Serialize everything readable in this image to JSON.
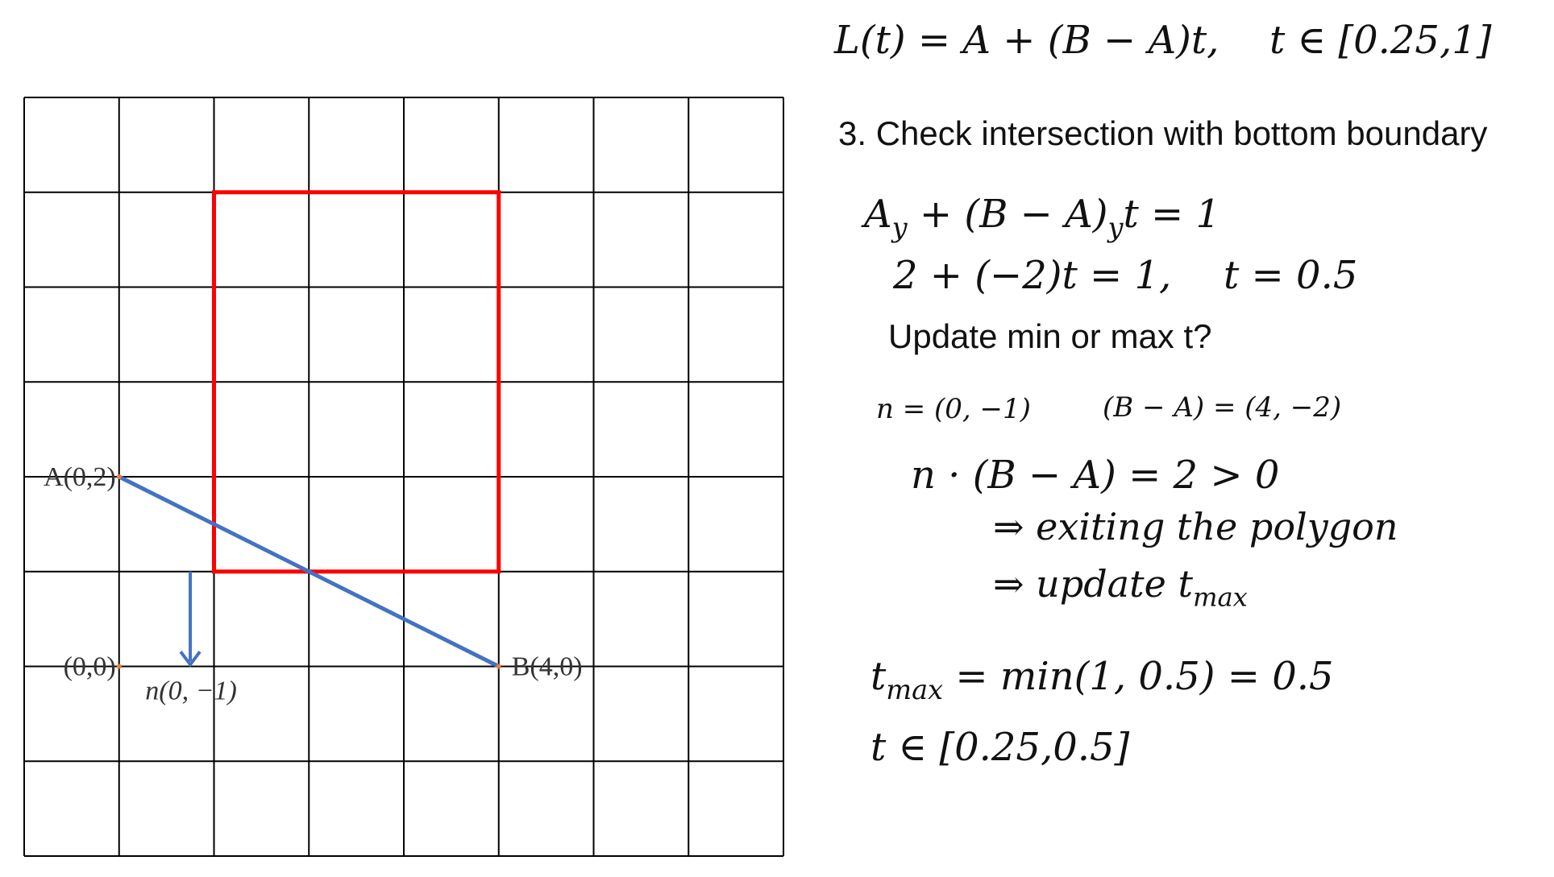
{
  "diagram": {
    "grid_cells": 8,
    "clip_rect": {
      "x_min": 1,
      "x_max": 4,
      "y_min": 1,
      "y_max": 5
    },
    "segment": {
      "A": [
        0,
        2
      ],
      "B": [
        4,
        0
      ]
    },
    "normal": {
      "origin": [
        0.75,
        1
      ],
      "direction": [
        0,
        -1
      ]
    },
    "colors": {
      "grid": "#000000",
      "clip": "#ff0000",
      "segment": "#4472c4",
      "point": "#ed7d31"
    },
    "labels": {
      "A": "A(0,2)",
      "B": "B(4,0)",
      "origin": "(0,0)",
      "normal": "n(0, −1)"
    }
  },
  "text": {
    "line_eq_lhs": "L(t) = A + (B − A)t,",
    "line_eq_range": "t ∈ [0.25,1]",
    "step_title": "3. Check intersection with bottom boundary",
    "eq1_a": "A",
    "eq1_a_sub": "y",
    "eq1_mid": " + (B − A)",
    "eq1_mid_sub": "y",
    "eq1_end": "t = 1",
    "eq2": "2  + (−2)t = 1,",
    "eq2_t": "t = 0.5",
    "question": "Update min or max t?",
    "n_vec": "n = (0, −1)",
    "ba_vec": "(B − A) = (4, −2)",
    "dot": "n · (B − A) = 2 > 0",
    "exiting": "⇒ exiting the polygon",
    "update_prefix": "⇒ update t",
    "update_sub": "max",
    "tmax_t": "t",
    "tmax_sub": "max",
    "tmax_rest": " = min(1, 0.5) = 0.5",
    "result": "t ∈ [0.25,0.5]"
  }
}
